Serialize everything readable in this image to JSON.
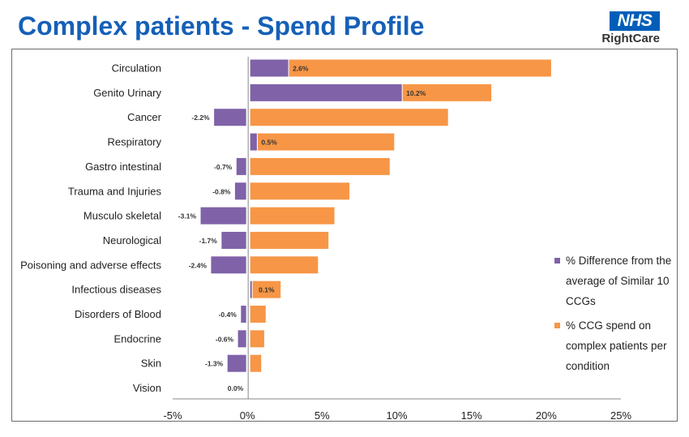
{
  "header": {
    "title": "Complex patients - Spend Profile",
    "logo_main": "NHS",
    "logo_sub": "RightCare"
  },
  "colors": {
    "title": "#1560b8",
    "nhs_blue": "#005eb8",
    "diff_series": "#7f62a8",
    "spend_series": "#f79646"
  },
  "legend": {
    "diff": "% Difference from the average of Similar 10 CCGs",
    "spend": "% CCG spend on complex patients per condition"
  },
  "chart_data": {
    "type": "bar",
    "orientation": "horizontal",
    "categories": [
      "Circulation",
      "Genito Urinary",
      "Cancer",
      "Respiratory",
      "Gastro intestinal",
      "Trauma and Injuries",
      "Musculo skeletal",
      "Neurological",
      "Poisoning and adverse effects",
      "Infectious diseases",
      "Disorders of Blood",
      "Endocrine",
      "Skin",
      "Vision"
    ],
    "series": [
      {
        "name": "% Difference from the average of Similar 10 CCGs",
        "values": [
          2.6,
          10.2,
          -2.2,
          0.5,
          -0.7,
          -0.8,
          -3.1,
          -1.7,
          -2.4,
          0.1,
          -0.4,
          -0.6,
          -1.3,
          0.0
        ],
        "labels": [
          "2.6%",
          "10.2%",
          "-2.2%",
          "0.5%",
          "-0.7%",
          "-0.8%",
          "-3.1%",
          "-1.7%",
          "-2.4%",
          "0.1%",
          "-0.4%",
          "-0.6%",
          "-1.3%",
          "0.0%"
        ]
      },
      {
        "name": "% CCG spend on complex patients per condition",
        "values": [
          20.3,
          16.3,
          13.4,
          9.8,
          9.5,
          6.8,
          5.8,
          5.4,
          4.7,
          2.2,
          1.2,
          1.1,
          0.9,
          0.0
        ]
      }
    ],
    "xlim": [
      -5,
      25
    ],
    "xticks": [
      -5,
      0,
      5,
      10,
      15,
      20,
      25
    ],
    "xtick_labels": [
      "-5%",
      "0%",
      "5%",
      "10%",
      "15%",
      "20%",
      "25%"
    ],
    "grid": false,
    "legend_position": "right"
  }
}
